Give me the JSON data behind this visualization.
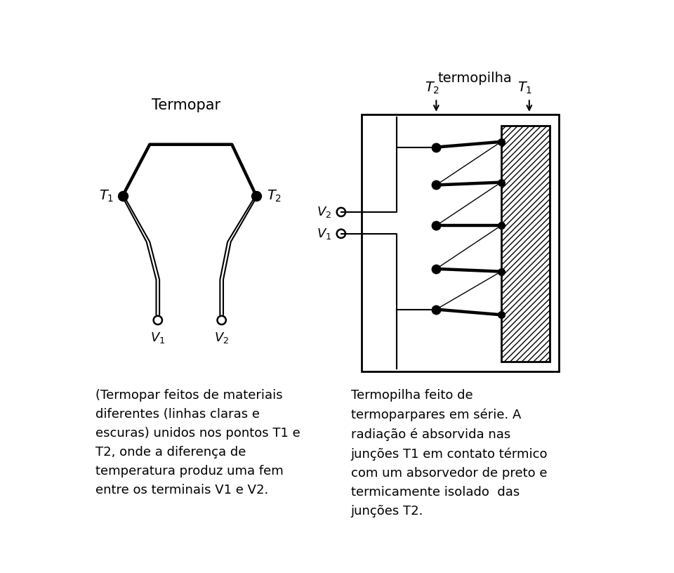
{
  "bg_color": "#ffffff",
  "title_termopar": "Termopar",
  "title_termopilha": "termopilha",
  "text_left": "(Termopar feitos de materiais\ndiferentes (linhas claras e\nescuras) unidos nos pontos T1 e\nT2, onde a diferença de\ntemperatura produz uma fem\nentre os terminais V1 e V2.",
  "text_right": "Termopilha feito de\ntermoparpares em série. A\nradiação é absorvida nas\njunções T1 em contato térmico\ncom um absorvedor de preto e\ntermicamente isolado  das\njunções T2."
}
